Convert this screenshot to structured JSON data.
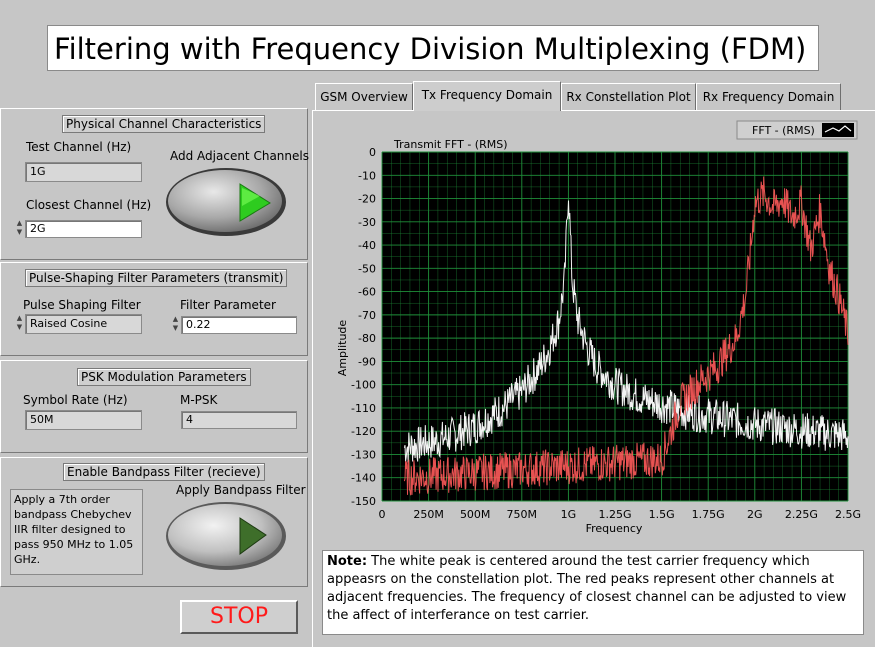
{
  "window": {
    "title": "Filtering with Frequency Division Multiplexing (FDM)"
  },
  "tabs": [
    {
      "label": "GSM Overview",
      "active": false
    },
    {
      "label": "Tx Frequency Domain",
      "active": true
    },
    {
      "label": "Rx Constellation Plot",
      "active": false
    },
    {
      "label": "Rx Frequency Domain",
      "active": false
    }
  ],
  "physical": {
    "title": "Physical Channel Characteristics",
    "test_channel_label": "Test Channel (Hz)",
    "test_channel_value": "1G",
    "closest_channel_label": "Closest Channel (Hz)",
    "closest_channel_value": "2G",
    "adjacent_label": "Add Adjacent Channels",
    "adjacent_on": true
  },
  "pulse": {
    "title": "Pulse-Shaping Filter Parameters (transmit)",
    "filter_label": "Pulse Shaping Filter",
    "filter_value": "Raised Cosine",
    "param_label": "Filter Parameter",
    "param_value": "0.22"
  },
  "psk": {
    "title": "PSK Modulation Parameters",
    "symbol_rate_label": "Symbol Rate (Hz)",
    "symbol_rate_value": "50M",
    "mpsk_label": "M-PSK",
    "mpsk_value": "4"
  },
  "bandpass": {
    "title": "Enable Bandpass Filter (recieve)",
    "apply_label": "Apply Bandpass Filter",
    "description": "Apply a 7th order bandpass Chebychev IIR filter designed to pass 950 MHz to 1.05 GHz.",
    "apply_on": false
  },
  "stop_label": "STOP",
  "note": {
    "bold": "Note:",
    "text": " The white peak is centered around the test carrier frequency which appeasrs on the constellation plot.  The red peaks represent other channels at adjacent frequencies.  The frequency of closest channel can be adjusted to view the affect of interferance on test carrier."
  },
  "chart_data": {
    "type": "line",
    "title": "Transmit FFT - (RMS)",
    "xlabel": "Frequency",
    "ylabel": "Amplitude",
    "legend": "FFT - (RMS)",
    "legend_position": "top-right",
    "x_ticks": [
      "0",
      "250M",
      "500M",
      "750M",
      "1G",
      "1.25G",
      "1.5G",
      "1.75G",
      "2G",
      "2.25G",
      "2.5G"
    ],
    "y_ticks": [
      "0",
      "-10",
      "-20",
      "-30",
      "-40",
      "-50",
      "-60",
      "-70",
      "-80",
      "-90",
      "-100",
      "-110",
      "-120",
      "-130",
      "-140",
      "-150"
    ],
    "xlim": [
      0,
      2.5
    ],
    "ylim": [
      -150,
      0
    ],
    "x_unit": "GHz",
    "grid": true,
    "background": "#000000",
    "grid_color": "#1f8f3a",
    "series": [
      {
        "color": "#ffffff",
        "x": [
          0.12,
          0.3,
          0.5,
          0.65,
          0.75,
          0.85,
          0.9,
          0.95,
          0.98,
          1.0,
          1.02,
          1.05,
          1.1,
          1.15,
          1.25,
          1.4,
          1.6,
          1.8,
          2.0,
          2.2,
          2.4,
          2.5
        ],
        "y": [
          -127,
          -124,
          -118,
          -110,
          -103,
          -92,
          -84,
          -72,
          -55,
          -15,
          -55,
          -72,
          -84,
          -92,
          -100,
          -106,
          -111,
          -114,
          -117,
          -119,
          -121,
          -122
        ]
      },
      {
        "color": "#ff5a5a",
        "x": [
          0.12,
          1.5,
          1.6,
          1.7,
          1.8,
          1.9,
          1.95,
          1.98,
          2.0,
          2.05,
          2.1,
          2.15,
          2.2,
          2.25,
          2.3,
          2.35,
          2.4,
          2.45,
          2.5
        ],
        "y": [
          -140,
          -132,
          -108,
          -99,
          -92,
          -80,
          -62,
          -40,
          -22,
          -18,
          -24,
          -20,
          -28,
          -22,
          -42,
          -25,
          -50,
          -62,
          -78
        ]
      }
    ]
  }
}
